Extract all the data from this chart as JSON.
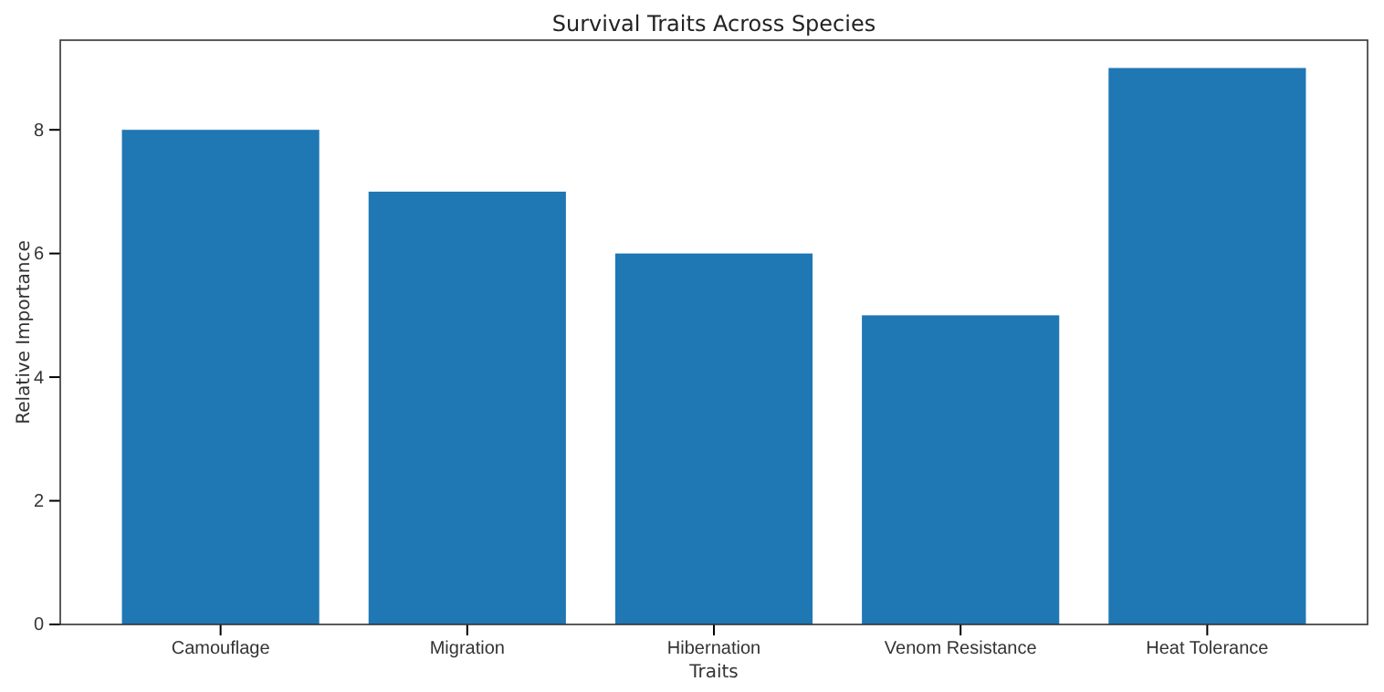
{
  "chart_data": {
    "type": "bar",
    "title": "Survival Traits Across Species",
    "xlabel": "Traits",
    "ylabel": "Relative Importance",
    "categories": [
      "Camouflage",
      "Migration",
      "Hibernation",
      "Venom Resistance",
      "Heat Tolerance"
    ],
    "values": [
      8,
      7,
      6,
      5,
      9
    ],
    "color": "#1f77b4",
    "ylim": [
      0,
      9.45
    ],
    "yticks": [
      0,
      2,
      4,
      6,
      8
    ],
    "grid": false
  }
}
